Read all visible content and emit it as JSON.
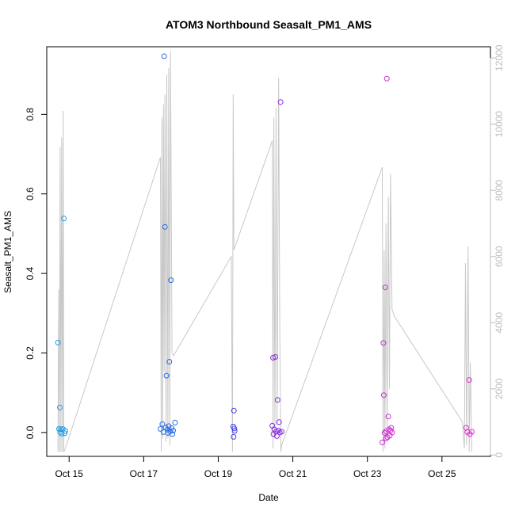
{
  "chart_data": {
    "type": "scatter",
    "title": "ATOM3 Northbound Seasalt_PM1_AMS",
    "xlabel": "Date",
    "ylabel": "Seasalt_PM1_AMS",
    "xlim": [
      14.4,
      26.3
    ],
    "ylim": [
      -0.06,
      0.97
    ],
    "y2lim": [
      -40,
      12340
    ],
    "x_ticks": [
      {
        "value": 15,
        "label": "Oct 15"
      },
      {
        "value": 17,
        "label": "Oct 17"
      },
      {
        "value": 19,
        "label": "Oct 19"
      },
      {
        "value": 21,
        "label": "Oct 21"
      },
      {
        "value": 23,
        "label": "Oct 23"
      },
      {
        "value": 25,
        "label": "Oct 25"
      }
    ],
    "y_ticks": [
      0.0,
      0.2,
      0.4,
      0.6,
      0.8
    ],
    "y_tick_labels": [
      "0.0",
      "0.2",
      "0.4",
      "0.6",
      "0.8"
    ],
    "y2_ticks": [
      0,
      2000,
      4000,
      6000,
      8000,
      10000,
      12000
    ],
    "y2_label": "",
    "altitude_color": "#c8c8c8",
    "points": [
      {
        "x": 14.7,
        "y": 0.226,
        "color": "#1e9be6"
      },
      {
        "x": 14.73,
        "y": 0.009,
        "color": "#1e9be6"
      },
      {
        "x": 14.75,
        "y": 0.063,
        "color": "#1e9be6"
      },
      {
        "x": 14.76,
        "y": 0.001,
        "color": "#1e9be6"
      },
      {
        "x": 14.78,
        "y": 0.008,
        "color": "#1e9be6"
      },
      {
        "x": 14.8,
        "y": -0.003,
        "color": "#1e9be6"
      },
      {
        "x": 14.83,
        "y": 0.009,
        "color": "#1e9be6"
      },
      {
        "x": 14.86,
        "y": 0.538,
        "color": "#1e9be6"
      },
      {
        "x": 14.88,
        "y": -0.002,
        "color": "#1e9be6"
      },
      {
        "x": 14.9,
        "y": 0.004,
        "color": "#1e9be6"
      },
      {
        "x": 17.45,
        "y": 0.009,
        "color": "#2a6ce2"
      },
      {
        "x": 17.5,
        "y": 0.021,
        "color": "#2a6ce2"
      },
      {
        "x": 17.53,
        "y": 0.001,
        "color": "#2a6ce2"
      },
      {
        "x": 17.55,
        "y": 0.946,
        "color": "#2a6ce2"
      },
      {
        "x": 17.57,
        "y": 0.517,
        "color": "#2a6ce2"
      },
      {
        "x": 17.59,
        "y": 0.012,
        "color": "#2a6ce2"
      },
      {
        "x": 17.61,
        "y": 0.143,
        "color": "#2a6ce2"
      },
      {
        "x": 17.63,
        "y": 0.007,
        "color": "#2a6ce2"
      },
      {
        "x": 17.65,
        "y": -0.001,
        "color": "#2a6ce2"
      },
      {
        "x": 17.67,
        "y": 0.016,
        "color": "#2a6ce2"
      },
      {
        "x": 17.69,
        "y": 0.178,
        "color": "#2a6ce2"
      },
      {
        "x": 17.71,
        "y": 0.003,
        "color": "#2a6ce2"
      },
      {
        "x": 17.73,
        "y": 0.383,
        "color": "#2a6ce2"
      },
      {
        "x": 17.75,
        "y": 0.011,
        "color": "#2a6ce2"
      },
      {
        "x": 17.77,
        "y": -0.004,
        "color": "#2a6ce2"
      },
      {
        "x": 17.79,
        "y": 0.005,
        "color": "#2a6ce2"
      },
      {
        "x": 17.84,
        "y": 0.025,
        "color": "#2a6ce2"
      },
      {
        "x": 19.4,
        "y": 0.015,
        "color": "#3f3fe0"
      },
      {
        "x": 19.42,
        "y": 0.055,
        "color": "#3f3fe0"
      },
      {
        "x": 19.43,
        "y": 0.01,
        "color": "#3f3fe0"
      },
      {
        "x": 19.44,
        "y": 0.004,
        "color": "#3f3fe0"
      },
      {
        "x": 19.41,
        "y": -0.011,
        "color": "#3f3fe0"
      },
      {
        "x": 20.45,
        "y": 0.017,
        "color": "#8a2be2"
      },
      {
        "x": 20.47,
        "y": 0.188,
        "color": "#8a2be2"
      },
      {
        "x": 20.48,
        "y": -0.004,
        "color": "#8a2be2"
      },
      {
        "x": 20.5,
        "y": 0.008,
        "color": "#8a2be2"
      },
      {
        "x": 20.53,
        "y": 0.19,
        "color": "#8a2be2"
      },
      {
        "x": 20.55,
        "y": 0.002,
        "color": "#8a2be2"
      },
      {
        "x": 20.57,
        "y": -0.009,
        "color": "#8a2be2"
      },
      {
        "x": 20.59,
        "y": 0.082,
        "color": "#8a2be2"
      },
      {
        "x": 20.61,
        "y": 0.005,
        "color": "#8a2be2"
      },
      {
        "x": 20.63,
        "y": 0.026,
        "color": "#8a2be2"
      },
      {
        "x": 20.65,
        "y": 0.0,
        "color": "#8a2be2"
      },
      {
        "x": 20.67,
        "y": 0.831,
        "color": "#8a2be2"
      },
      {
        "x": 20.7,
        "y": 0.002,
        "color": "#8a2be2"
      },
      {
        "x": 23.4,
        "y": -0.025,
        "color": "#d12ad6"
      },
      {
        "x": 23.43,
        "y": 0.225,
        "color": "#d12ad6"
      },
      {
        "x": 23.44,
        "y": 0.094,
        "color": "#d12ad6"
      },
      {
        "x": 23.46,
        "y": -0.001,
        "color": "#d12ad6"
      },
      {
        "x": 23.48,
        "y": 0.365,
        "color": "#d12ad6"
      },
      {
        "x": 23.5,
        "y": 0.003,
        "color": "#d12ad6"
      },
      {
        "x": 23.52,
        "y": 0.89,
        "color": "#d12ad6"
      },
      {
        "x": 23.54,
        "y": -0.012,
        "color": "#d12ad6"
      },
      {
        "x": 23.56,
        "y": 0.04,
        "color": "#d12ad6"
      },
      {
        "x": 23.58,
        "y": 0.008,
        "color": "#d12ad6"
      },
      {
        "x": 23.6,
        "y": -0.008,
        "color": "#d12ad6"
      },
      {
        "x": 23.62,
        "y": 0.005,
        "color": "#d12ad6"
      },
      {
        "x": 23.64,
        "y": 0.012,
        "color": "#d12ad6"
      },
      {
        "x": 23.66,
        "y": 0.0,
        "color": "#d12ad6"
      },
      {
        "x": 23.5,
        "y": -0.015,
        "color": "#d12ad6"
      },
      {
        "x": 25.65,
        "y": 0.012,
        "color": "#e22ad2"
      },
      {
        "x": 25.68,
        "y": 0.001,
        "color": "#e22ad2"
      },
      {
        "x": 25.73,
        "y": 0.132,
        "color": "#e22ad2"
      },
      {
        "x": 25.75,
        "y": -0.004,
        "color": "#e22ad2"
      },
      {
        "x": 25.8,
        "y": 0.002,
        "color": "#e22ad2"
      }
    ],
    "altitude": [
      [
        14.7,
        100
      ],
      [
        14.72,
        5000
      ],
      [
        14.74,
        100
      ],
      [
        14.76,
        9300
      ],
      [
        14.78,
        100
      ],
      [
        14.8,
        9600
      ],
      [
        14.82,
        100
      ],
      [
        14.84,
        10400
      ],
      [
        14.86,
        100
      ],
      [
        14.9,
        200
      ],
      [
        17.45,
        9000
      ],
      [
        17.47,
        100
      ],
      [
        17.49,
        10200
      ],
      [
        17.51,
        500
      ],
      [
        17.53,
        10600
      ],
      [
        17.55,
        2500
      ],
      [
        17.57,
        10900
      ],
      [
        17.6,
        400
      ],
      [
        17.62,
        11500
      ],
      [
        17.65,
        500
      ],
      [
        17.67,
        11700
      ],
      [
        17.7,
        300
      ],
      [
        17.72,
        12200
      ],
      [
        17.76,
        3100
      ],
      [
        17.8,
        3000
      ],
      [
        19.35,
        6000
      ],
      [
        19.38,
        100
      ],
      [
        19.4,
        10900
      ],
      [
        19.42,
        6200
      ],
      [
        20.45,
        9500
      ],
      [
        20.47,
        200
      ],
      [
        20.49,
        10200
      ],
      [
        20.52,
        500
      ],
      [
        20.55,
        10500
      ],
      [
        20.58,
        900
      ],
      [
        20.62,
        11400
      ],
      [
        20.65,
        3800
      ],
      [
        20.68,
        100
      ],
      [
        20.7,
        300
      ],
      [
        23.4,
        8700
      ],
      [
        23.42,
        100
      ],
      [
        23.45,
        6200
      ],
      [
        23.47,
        200
      ],
      [
        23.5,
        7000
      ],
      [
        23.53,
        500
      ],
      [
        23.56,
        7800
      ],
      [
        23.59,
        2000
      ],
      [
        23.62,
        8500
      ],
      [
        23.66,
        4400
      ],
      [
        23.72,
        4200
      ],
      [
        25.55,
        1000
      ],
      [
        25.6,
        200
      ],
      [
        25.63,
        5800
      ],
      [
        25.66,
        300
      ],
      [
        25.7,
        6300
      ],
      [
        25.73,
        100
      ],
      [
        25.76,
        2800
      ],
      [
        25.8,
        100
      ]
    ]
  }
}
